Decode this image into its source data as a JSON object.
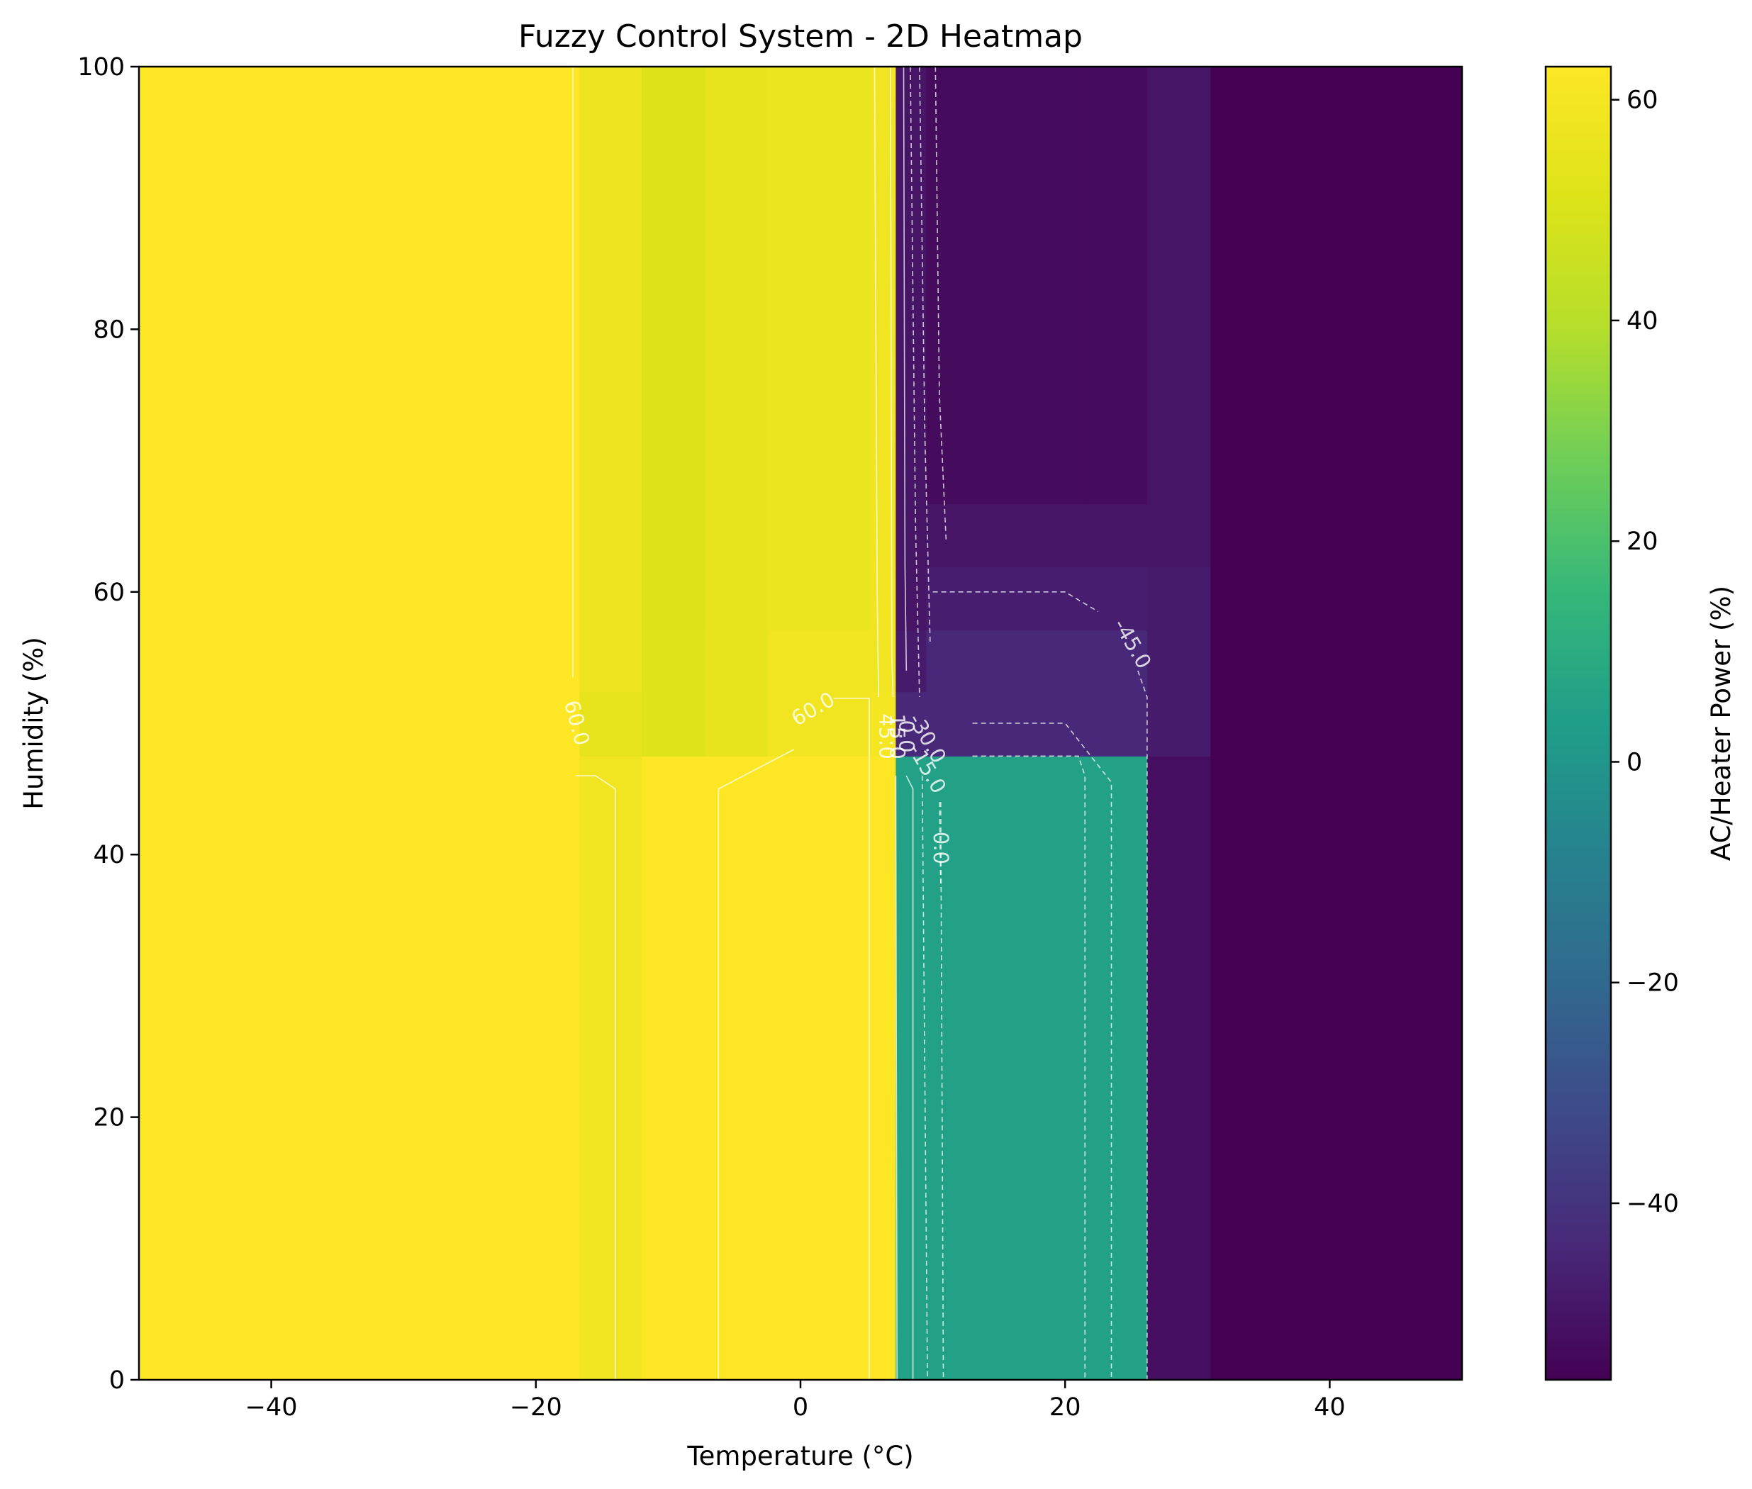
{
  "chart_data": {
    "type": "heatmap",
    "title": "Fuzzy Control System - 2D Heatmap",
    "xlabel": "Temperature (°C)",
    "ylabel": "Humidity (%)",
    "xlim": [
      -50,
      50
    ],
    "ylim": [
      0,
      100
    ],
    "xticks": [
      -40,
      -20,
      0,
      20,
      40
    ],
    "yticks": [
      0,
      20,
      40,
      60,
      80,
      100
    ],
    "x_tick_labels": [
      "−40",
      "−20",
      "0",
      "20",
      "40"
    ],
    "y_tick_labels": [
      "0",
      "20",
      "40",
      "60",
      "80",
      "100"
    ],
    "colormap": "viridis",
    "value_range": [
      -56,
      63
    ],
    "colorbar": {
      "label": "AC/Heater Power (%)",
      "ticks": [
        60,
        40,
        20,
        0,
        -20,
        -40
      ],
      "tick_labels": [
        "60",
        "40",
        "20",
        "0",
        "−20",
        "−40"
      ]
    },
    "x_edges": [
      -50,
      -16.7,
      -12,
      -7.2,
      -2.5,
      5.3,
      7.2,
      9.5,
      21.5,
      26.2,
      31,
      50
    ],
    "y_edges": [
      0,
      47.5,
      52.4,
      57.1,
      61.9,
      66.7,
      100
    ],
    "cells": [
      [
        63,
        58,
        63,
        63,
        63,
        63,
        5,
        5,
        5,
        -52,
        -56
      ],
      [
        63,
        55,
        52,
        55,
        58,
        60,
        -44,
        -44,
        -44,
        -48,
        -56
      ],
      [
        63,
        57,
        52,
        55,
        58,
        58,
        -48,
        -44,
        -44,
        -48,
        -56
      ],
      [
        63,
        57,
        51,
        55,
        56,
        58,
        -50,
        -47,
        -47,
        -48,
        -56
      ],
      [
        63,
        57,
        51,
        55,
        56,
        58,
        -50,
        -50,
        -50,
        -50,
        -56
      ],
      [
        63,
        57,
        51,
        55,
        56,
        58,
        -50,
        -53,
        -53,
        -50,
        -56
      ]
    ],
    "contour_labels": [
      {
        "text": "60.0",
        "x": -17,
        "y": 50,
        "rotation": 75
      },
      {
        "text": "60.0",
        "x": 1,
        "y": 51,
        "rotation": -30
      },
      {
        "text": "45.0",
        "x": 6.4,
        "y": 49,
        "rotation": 90
      },
      {
        "text": "15.0",
        "x": 7.2,
        "y": 49,
        "rotation": 90
      },
      {
        "text": "0.0",
        "x": 7.9,
        "y": 49,
        "rotation": 90
      },
      {
        "text": "-30.0",
        "x": 9.5,
        "y": 48.8,
        "rotation": 60
      },
      {
        "text": "-15.0",
        "x": 9.5,
        "y": 46.5,
        "rotation": 60
      },
      {
        "text": "0.0",
        "x": 10.5,
        "y": 40.5,
        "rotation": 90
      },
      {
        "text": "-45.0",
        "x": 25,
        "y": 56,
        "rotation": 60
      }
    ],
    "contours": [
      {
        "level": 60,
        "dashed": false,
        "points": [
          [
            -17.2,
            100
          ],
          [
            -17.2,
            53.5
          ]
        ]
      },
      {
        "level": 60,
        "dashed": false,
        "points": [
          [
            -17,
            46
          ],
          [
            -15.5,
            46
          ],
          [
            -14,
            45
          ],
          [
            -14,
            0
          ]
        ]
      },
      {
        "level": 60,
        "dashed": false,
        "points": [
          [
            2.5,
            51.9
          ],
          [
            5.2,
            51.9
          ],
          [
            5.2,
            0
          ]
        ]
      },
      {
        "level": 60,
        "dashed": false,
        "points": [
          [
            -0.5,
            48
          ],
          [
            -6.2,
            45
          ],
          [
            -6.2,
            0
          ]
        ]
      },
      {
        "level": 45,
        "dashed": false,
        "points": [
          [
            5.6,
            100
          ],
          [
            5.8,
            60
          ],
          [
            5.9,
            52
          ]
        ]
      },
      {
        "level": 30,
        "dashed": false,
        "points": [
          [
            6.8,
            100
          ],
          [
            6.9,
            55
          ],
          [
            7.0,
            52
          ]
        ]
      },
      {
        "level": 15,
        "dashed": false,
        "points": [
          [
            7.2,
            46
          ],
          [
            7.3,
            0
          ]
        ]
      },
      {
        "level": 0,
        "dashed": false,
        "points": [
          [
            7.8,
            100
          ],
          [
            7.9,
            62
          ],
          [
            8.0,
            54
          ]
        ]
      },
      {
        "level": 0,
        "dashed": false,
        "points": [
          [
            8.0,
            46
          ],
          [
            8.5,
            45
          ],
          [
            8.5,
            0
          ]
        ]
      },
      {
        "level": -15,
        "dashed": true,
        "points": [
          [
            8.3,
            100
          ],
          [
            8.7,
            65
          ],
          [
            9.0,
            52
          ]
        ]
      },
      {
        "level": -15,
        "dashed": true,
        "points": [
          [
            9.2,
            46
          ],
          [
            9.6,
            0
          ]
        ]
      },
      {
        "level": -30,
        "dashed": true,
        "points": [
          [
            9.0,
            100
          ],
          [
            9.4,
            72
          ],
          [
            9.8,
            56
          ]
        ]
      },
      {
        "level": -30,
        "dashed": true,
        "points": [
          [
            10.2,
            100
          ],
          [
            10.5,
            75
          ],
          [
            11.0,
            64
          ]
        ]
      },
      {
        "level": -30,
        "dashed": true,
        "points": [
          [
            10.5,
            44
          ],
          [
            10.6,
            37.5
          ]
        ]
      },
      {
        "level": -30,
        "dashed": true,
        "points": [
          [
            10.6,
            44
          ],
          [
            10.8,
            0
          ]
        ]
      },
      {
        "level": -45,
        "dashed": true,
        "points": [
          [
            10,
            60
          ],
          [
            20,
            60
          ],
          [
            22.5,
            58.5
          ]
        ]
      },
      {
        "level": -45,
        "dashed": true,
        "points": [
          [
            25.5,
            54
          ],
          [
            26.2,
            52
          ],
          [
            26.2,
            0
          ]
        ]
      },
      {
        "level": -30,
        "dashed": true,
        "points": [
          [
            13,
            50
          ],
          [
            20,
            50
          ],
          [
            23.5,
            45.5
          ],
          [
            23.5,
            0
          ]
        ]
      },
      {
        "level": -15,
        "dashed": true,
        "points": [
          [
            13,
            47.5
          ],
          [
            21,
            47.5
          ],
          [
            21.5,
            46
          ],
          [
            21.5,
            0
          ]
        ]
      }
    ]
  }
}
